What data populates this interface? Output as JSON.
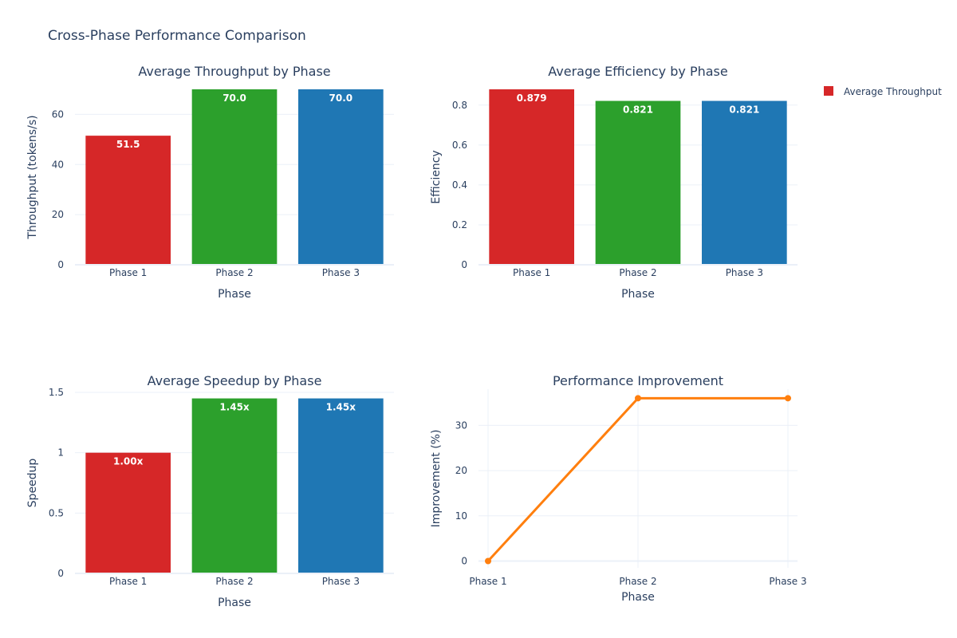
{
  "title": "Cross-Phase Performance Comparison",
  "legend": {
    "label": "Average Throughput",
    "color": "#d62728",
    "placement": "top-right"
  },
  "colors": {
    "phase1": "#d62728",
    "phase2": "#2ca02c",
    "phase3": "#1f77b4",
    "line": "#ff7f0e",
    "grid": "#ebf0f8"
  },
  "chart_data": [
    {
      "type": "bar",
      "title": "Average Throughput by Phase",
      "categories": [
        "Phase 1",
        "Phase 2",
        "Phase 3"
      ],
      "values": [
        51.5,
        70.0,
        70.0
      ],
      "data_labels": [
        "51.5",
        "70.0",
        "70.0"
      ],
      "xlabel": "Phase",
      "ylabel": "Throughput (tokens/s)",
      "ylim": [
        0,
        70
      ],
      "yticks": [
        0,
        20,
        40,
        60
      ],
      "ytick_labels": [
        "0",
        "20",
        "40",
        "60"
      ],
      "grid": true
    },
    {
      "type": "bar",
      "title": "Average Efficiency by Phase",
      "categories": [
        "Phase 1",
        "Phase 2",
        "Phase 3"
      ],
      "values": [
        0.879,
        0.821,
        0.821
      ],
      "data_labels": [
        "0.879",
        "0.821",
        "0.821"
      ],
      "xlabel": "Phase",
      "ylabel": "Efficiency",
      "ylim": [
        0,
        0.879
      ],
      "yticks": [
        0,
        0.2,
        0.4,
        0.6,
        0.8
      ],
      "ytick_labels": [
        "0",
        "0.2",
        "0.4",
        "0.6",
        "0.8"
      ],
      "grid": true
    },
    {
      "type": "bar",
      "title": "Average Speedup by Phase",
      "categories": [
        "Phase 1",
        "Phase 2",
        "Phase 3"
      ],
      "values": [
        1.0,
        1.45,
        1.45
      ],
      "data_labels": [
        "1.00x",
        "1.45x",
        "1.45x"
      ],
      "xlabel": "Phase",
      "ylabel": "Speedup",
      "ylim": [
        0,
        1.5
      ],
      "yticks": [
        0,
        0.5,
        1,
        1.5
      ],
      "ytick_labels": [
        "0",
        "0.5",
        "1",
        "1.5"
      ],
      "grid": true
    },
    {
      "type": "line",
      "title": "Performance Improvement",
      "categories": [
        "Phase 1",
        "Phase 2",
        "Phase 3"
      ],
      "values": [
        0,
        36,
        36
      ],
      "xlabel": "Phase",
      "ylabel": "Improvement (%)",
      "ylim": [
        -1.5,
        38
      ],
      "yticks": [
        0,
        10,
        20,
        30
      ],
      "ytick_labels": [
        "0",
        "10",
        "20",
        "30"
      ],
      "grid": true,
      "markers": true
    }
  ]
}
